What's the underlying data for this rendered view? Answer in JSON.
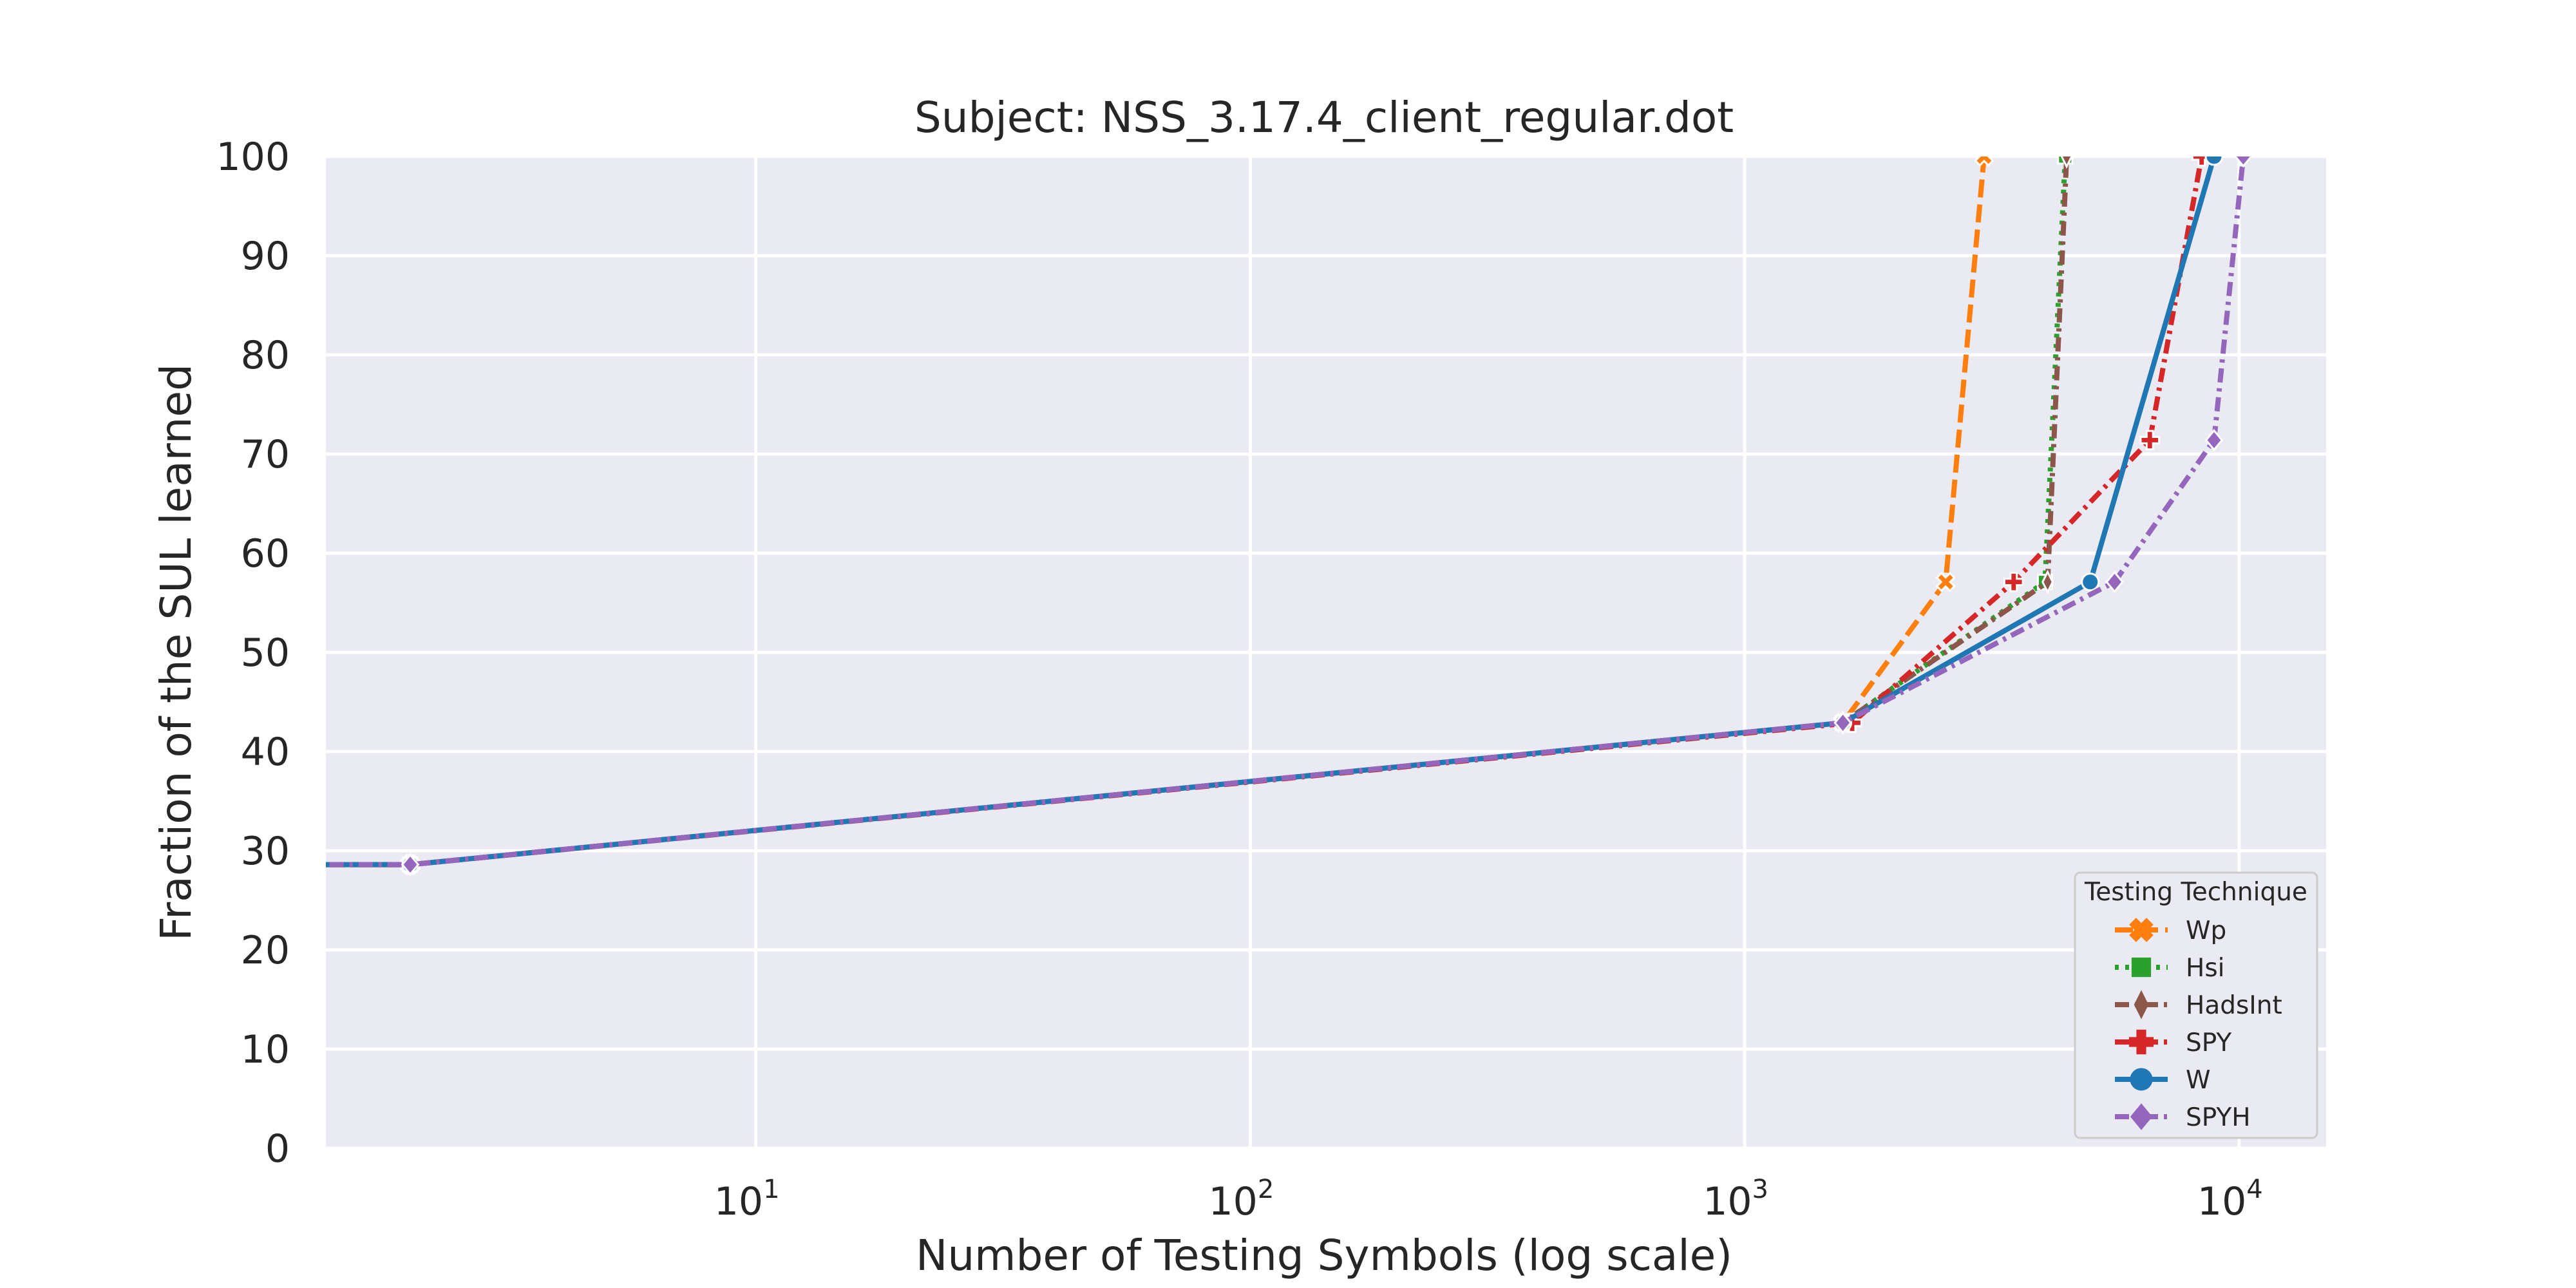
{
  "chart_data": {
    "type": "line",
    "title": "Subject: NSS_3.17.4_client_regular.dot",
    "xlabel": "Number of Testing Symbols (log scale)",
    "ylabel": "Fraction of the SUL learned",
    "xscale": "log",
    "xlim": [
      1.35,
      15000
    ],
    "ylim": [
      0,
      100
    ],
    "x_ticks": [
      {
        "base": "10",
        "exp": "1",
        "value": 10
      },
      {
        "base": "10",
        "exp": "2",
        "value": 100
      },
      {
        "base": "10",
        "exp": "3",
        "value": 1000
      },
      {
        "base": "10",
        "exp": "4",
        "value": 10000
      }
    ],
    "y_ticks": [
      0,
      10,
      20,
      30,
      40,
      50,
      60,
      70,
      80,
      90,
      100
    ],
    "grid": true,
    "background": "#eaeaf2",
    "legend": {
      "title": "Testing Technique",
      "placement": "lower-right"
    },
    "series": [
      {
        "name": "Wp",
        "color": "#ff7f0e",
        "dash": "dashed",
        "marker": "x-filled",
        "points": [
          [
            1.2,
            28.6
          ],
          [
            2,
            28.6
          ],
          [
            1580,
            42.9
          ],
          [
            2550,
            57.1
          ],
          [
            3050,
            100
          ]
        ]
      },
      {
        "name": "Hsi",
        "color": "#2ca02c",
        "dash": "dotted",
        "marker": "square",
        "points": [
          [
            1.2,
            28.6
          ],
          [
            2,
            28.6
          ],
          [
            1580,
            42.9
          ],
          [
            4050,
            57.1
          ],
          [
            4450,
            100
          ]
        ]
      },
      {
        "name": "HadsInt",
        "color": "#8c564b",
        "dash": "dashdot",
        "marker": "diamond-thin",
        "points": [
          [
            1.2,
            28.6
          ],
          [
            2,
            28.6
          ],
          [
            1580,
            42.9
          ],
          [
            4100,
            57.1
          ],
          [
            4480,
            100
          ]
        ]
      },
      {
        "name": "SPY",
        "color": "#d62728",
        "dash": "dashdot",
        "marker": "plus-filled",
        "points": [
          [
            1.2,
            28.6
          ],
          [
            2,
            28.6
          ],
          [
            1650,
            42.9
          ],
          [
            3500,
            57.1
          ],
          [
            6600,
            71.4
          ],
          [
            8400,
            100
          ]
        ]
      },
      {
        "name": "W",
        "color": "#1f77b4",
        "dash": "solid",
        "marker": "circle",
        "points": [
          [
            1.2,
            28.6
          ],
          [
            2,
            28.6
          ],
          [
            1580,
            42.9
          ],
          [
            5000,
            57.1
          ],
          [
            8900,
            100
          ]
        ]
      },
      {
        "name": "SPYH",
        "color": "#9467bd",
        "dash": "dashdot",
        "marker": "diamond",
        "points": [
          [
            1.2,
            28.6
          ],
          [
            2,
            28.6
          ],
          [
            1580,
            42.9
          ],
          [
            5600,
            57.1
          ],
          [
            8900,
            71.4
          ],
          [
            10200,
            100
          ]
        ]
      }
    ]
  }
}
